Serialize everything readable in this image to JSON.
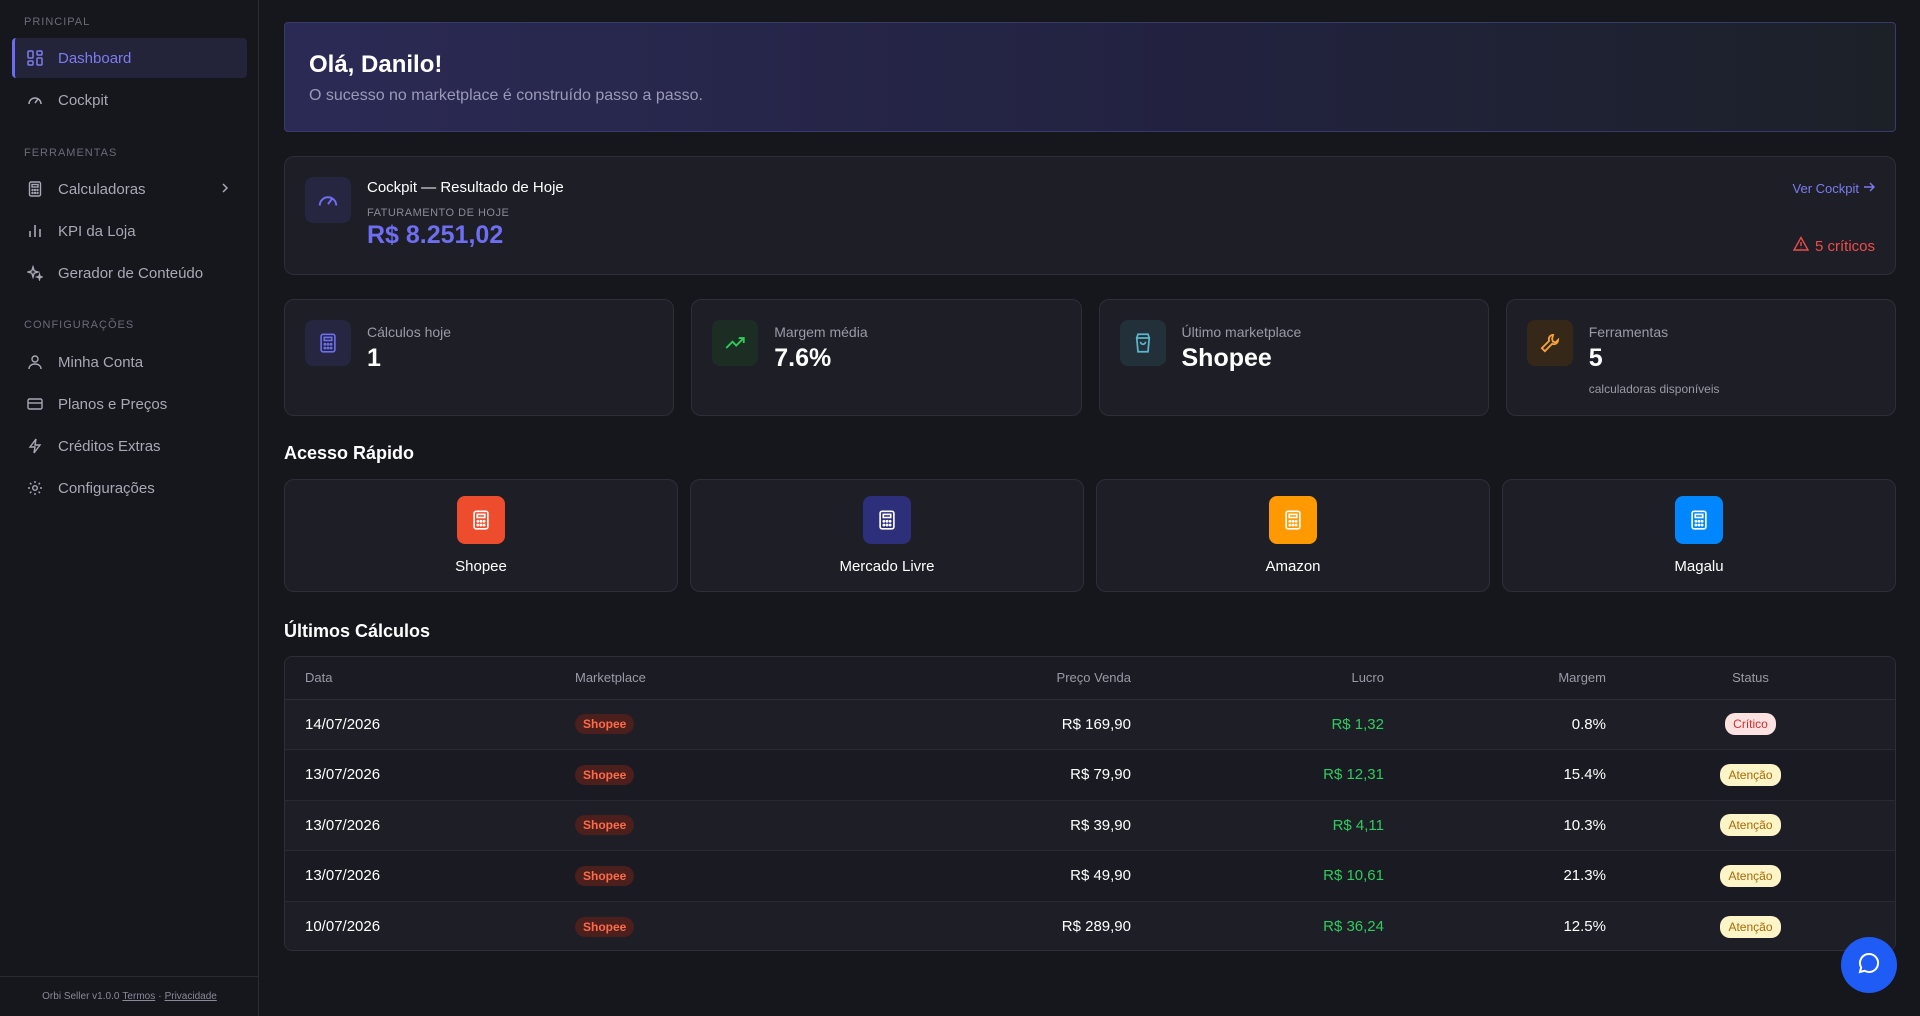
{
  "sidebar": {
    "sections": {
      "principal": "PRINCIPAL",
      "ferramentas": "FERRAMENTAS",
      "configuracoes": "CONFIGURAÇÕES"
    },
    "items": [
      {
        "label": "Dashboard",
        "icon": "dashboard-grid-icon"
      },
      {
        "label": "Cockpit",
        "icon": "gauge-icon"
      },
      {
        "label": "Calculadoras",
        "icon": "calculator-icon"
      },
      {
        "label": "KPI da Loja",
        "icon": "bar-chart-icon"
      },
      {
        "label": "Gerador de Conteúdo",
        "icon": "sparkles-icon"
      },
      {
        "label": "Minha Conta",
        "icon": "user-icon"
      },
      {
        "label": "Planos e Preços",
        "icon": "credit-card-icon"
      },
      {
        "label": "Créditos Extras",
        "icon": "lightning-icon"
      },
      {
        "label": "Configurações",
        "icon": "gear-icon"
      }
    ],
    "footer": {
      "version": "Orbi Seller v1.0.0",
      "terms": "Termos",
      "separator": "·",
      "privacy": "Privacidade"
    }
  },
  "hero": {
    "greeting": "Olá, Danilo!",
    "subtitle": "O sucesso no marketplace é construído passo a passo."
  },
  "cockpit": {
    "title": "Cockpit — Resultado de Hoje",
    "sub_label": "FATURAMENTO DE HOJE",
    "amount": "R$ 8.251,02",
    "link": "Ver Cockpit",
    "critical": "5 críticos"
  },
  "stats": [
    {
      "label": "Cálculos hoje",
      "value": "1",
      "note": "",
      "icon": "calculator-icon",
      "color": "#6e6ef2"
    },
    {
      "label": "Margem média",
      "value": "7.6%",
      "note": "",
      "icon": "trending-up-icon",
      "color": "#2ecc5c"
    },
    {
      "label": "Último marketplace",
      "value": "Shopee",
      "note": "",
      "icon": "shopping-bag-icon",
      "color": "#5bb6c9"
    },
    {
      "label": "Ferramentas",
      "value": "5",
      "note": "calculadoras disponíveis",
      "icon": "wrench-icon",
      "color": "#f2a03c"
    }
  ],
  "quick_access": {
    "title": "Acesso Rápido",
    "items": [
      {
        "label": "Shopee",
        "color": "#ee4d2d"
      },
      {
        "label": "Mercado Livre",
        "color": "#2d2f7a"
      },
      {
        "label": "Amazon",
        "color": "#ff9900"
      },
      {
        "label": "Magalu",
        "color": "#0086ff"
      }
    ]
  },
  "recent": {
    "title": "Últimos Cálculos",
    "columns": [
      "Data",
      "Marketplace",
      "Preço Venda",
      "Lucro",
      "Margem",
      "Status"
    ],
    "rows": [
      {
        "date": "14/07/2026",
        "marketplace": "Shopee",
        "price": "R$ 169,90",
        "profit": "R$ 1,32",
        "margin": "0.8%",
        "status": "Crítico"
      },
      {
        "date": "13/07/2026",
        "marketplace": "Shopee",
        "price": "R$ 79,90",
        "profit": "R$ 12,31",
        "margin": "15.4%",
        "status": "Atenção"
      },
      {
        "date": "13/07/2026",
        "marketplace": "Shopee",
        "price": "R$ 39,90",
        "profit": "R$ 4,11",
        "margin": "10.3%",
        "status": "Atenção"
      },
      {
        "date": "13/07/2026",
        "marketplace": "Shopee",
        "price": "R$ 49,90",
        "profit": "R$ 10,61",
        "margin": "21.3%",
        "status": "Atenção"
      },
      {
        "date": "10/07/2026",
        "marketplace": "Shopee",
        "price": "R$ 289,90",
        "profit": "R$ 36,24",
        "margin": "12.5%",
        "status": "Atenção"
      }
    ]
  },
  "chat": {
    "icon": "chat-bubble-icon"
  }
}
